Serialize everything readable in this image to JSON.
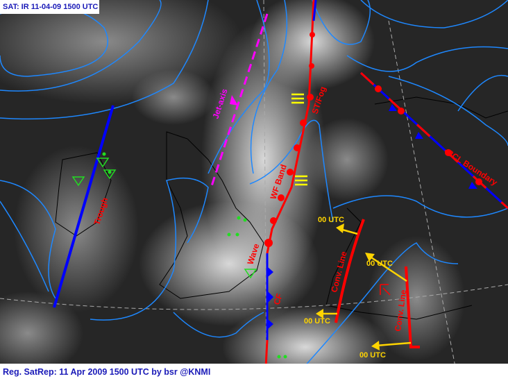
{
  "header": {
    "title": "SAT: IR 11-04-09 1500 UTC"
  },
  "footer": {
    "caption": "Reg. SatRep: 11 Apr 2009 1500 UTC by bsr  @KNMI"
  },
  "colors": {
    "isobar": "#1e88ff",
    "warm_front": "#ff0000",
    "cold_front": "#0000ff",
    "jet_axis": "#ff00ff",
    "arrows": "#ffd400",
    "wave_symbol": "#22dd22",
    "label_text_blue": "#1a1ab8"
  },
  "features": {
    "trough": "Trough",
    "jet_axis": "Jet-axis",
    "st_fog": "ST/Fog",
    "wf_band": "WF Band",
    "wave": "Wave",
    "cf": "CF",
    "bcl_boundary": "BCL Boundary",
    "conv_line_1": "Conv. Line",
    "conv_line_2": "Conv. Line"
  },
  "motion_labels": [
    "00 UTC",
    "00 UTC",
    "00 UTC",
    "00 UTC"
  ]
}
